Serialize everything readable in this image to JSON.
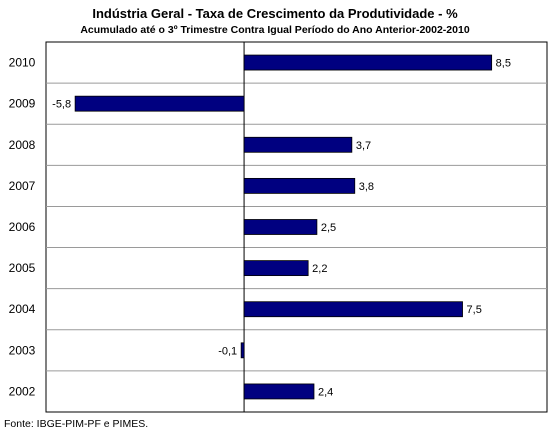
{
  "chart_data": {
    "type": "bar",
    "orientation": "horizontal",
    "title": "Indústria Geral - Taxa de Crescimento da Produtividade - %",
    "subtitle": "Acumulado até o 3º Trimestre Contra Igual Período do Ano Anterior-2002-2010",
    "categories": [
      "2010",
      "2009",
      "2008",
      "2007",
      "2006",
      "2005",
      "2004",
      "2003",
      "2002"
    ],
    "values": [
      8.5,
      -5.8,
      3.7,
      3.8,
      2.5,
      2.2,
      7.5,
      -0.1,
      2.4
    ],
    "value_labels": [
      "8,5",
      "-5,8",
      "3,7",
      "3,8",
      "2,5",
      "2,2",
      "7,5",
      "-0,1",
      "2,4"
    ],
    "xlim": [
      -6.8,
      10.4
    ],
    "bar_color": "#000080",
    "grid": "horizontal",
    "legend": "none"
  },
  "source": "Fonte: IBGE-PIM-PF e PIMES."
}
